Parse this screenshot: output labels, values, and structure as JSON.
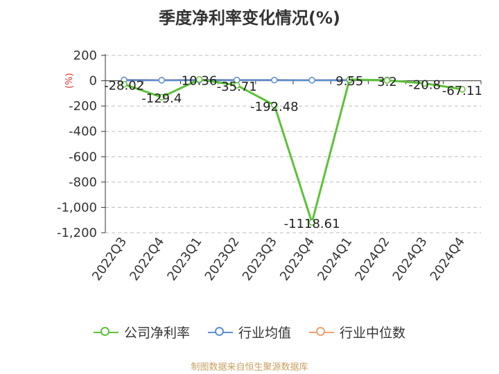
{
  "title": "季度净利率变化情况(%)",
  "source": "制图数据来自恒生聚源数据库",
  "chart_data": {
    "type": "line",
    "title": "季度净利率变化情况(%)",
    "ylabel": "(%)",
    "ylim": [
      -1200,
      200
    ],
    "yticks": [
      200,
      0,
      -200,
      -400,
      -600,
      -800,
      -1000,
      -1200
    ],
    "ytick_labels": [
      "200",
      "0",
      "-200",
      "-400",
      "-600",
      "-800",
      "-1,000",
      "-1,200"
    ],
    "categories": [
      "2022Q3",
      "2022Q4",
      "2023Q1",
      "2023Q2",
      "2023Q3",
      "2023Q4",
      "2024Q1",
      "2024Q2",
      "2024Q3",
      "2024Q4"
    ],
    "grid": true,
    "legend_position": "bottom",
    "series": [
      {
        "name": "公司净利率",
        "color": "#5bc236",
        "values": [
          -28.02,
          -129.4,
          10.36,
          -35.71,
          -192.48,
          -1118.61,
          9.55,
          3.2,
          -20.8,
          -67.11
        ],
        "labels": [
          "-28.02",
          "-129.4",
          "10.36",
          "-35.71",
          "-192.48",
          "-1118.61",
          "9.55",
          "3.2",
          "-20.8",
          "-67.11"
        ]
      },
      {
        "name": "行业均值",
        "color": "#5b8fd6",
        "values": [
          6,
          4,
          6,
          5,
          5,
          4,
          5,
          6,
          null,
          null
        ]
      },
      {
        "name": "行业中位数",
        "color": "#f0a070",
        "values": [
          7,
          5,
          7,
          6,
          6,
          5,
          6,
          7,
          null,
          null
        ]
      }
    ]
  }
}
